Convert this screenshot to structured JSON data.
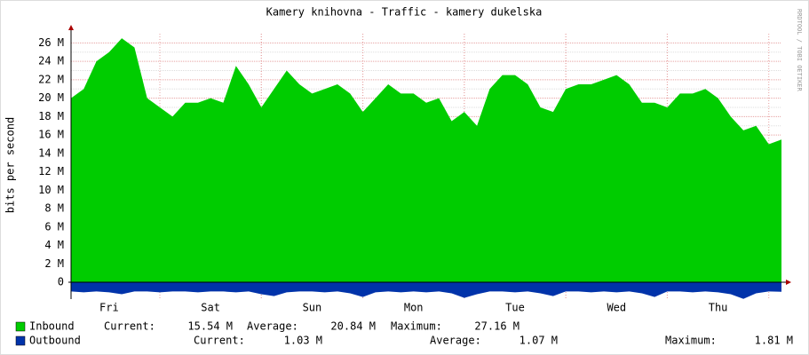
{
  "chart_data": {
    "type": "area",
    "title": "Kamery knihovna - Traffic - kamery dukelska",
    "y_label": "bits per second",
    "side_note": "RRDTOOL / TOBI OETIKER",
    "categories": [
      null,
      null,
      null,
      "Fri",
      null,
      null,
      null,
      null,
      null,
      null,
      null,
      "Sat",
      null,
      null,
      null,
      null,
      null,
      null,
      null,
      "Sun",
      null,
      null,
      null,
      null,
      null,
      null,
      null,
      "Mon",
      null,
      null,
      null,
      null,
      null,
      null,
      null,
      "Tue",
      null,
      null,
      null,
      null,
      null,
      null,
      null,
      "Wed",
      null,
      null,
      null,
      null,
      null,
      null,
      null,
      "Thu",
      null,
      null,
      null,
      null,
      null
    ],
    "series": [
      {
        "name": "Inbound",
        "color": "#00cc00",
        "direction": "up",
        "values": [
          20000000.0,
          21000000.0,
          24000000.0,
          25000000.0,
          26500000.0,
          25500000.0,
          20000000.0,
          19000000.0,
          18000000.0,
          19500000.0,
          19500000.0,
          20000000.0,
          19500000.0,
          23500000.0,
          21500000.0,
          19000000.0,
          21000000.0,
          23000000.0,
          21500000.0,
          20500000.0,
          21000000.0,
          21500000.0,
          20500000.0,
          18500000.0,
          20000000.0,
          21500000.0,
          20500000.0,
          20500000.0,
          19500000.0,
          20000000.0,
          17500000.0,
          18500000.0,
          17000000.0,
          21000000.0,
          22500000.0,
          22500000.0,
          21500000.0,
          19000000.0,
          18500000.0,
          21000000.0,
          21500000.0,
          21500000.0,
          22000000.0,
          22500000.0,
          21500000.0,
          19500000.0,
          19500000.0,
          19000000.0,
          20500000.0,
          20500000.0,
          21000000.0,
          20000000.0,
          18000000.0,
          16500000.0,
          17000000.0,
          15000000.0,
          15500000.0
        ],
        "stats": [
          {
            "label": "Current:",
            "value": "15.54 M"
          },
          {
            "label": "Average:",
            "value": "20.84 M"
          },
          {
            "label": "Maximum:",
            "value": "27.16 M"
          }
        ]
      },
      {
        "name": "Outbound",
        "color": "#0033aa",
        "direction": "down",
        "values": [
          1000000.0,
          1100000.0,
          1000000.0,
          1100000.0,
          1300000.0,
          1000000.0,
          1000000.0,
          1100000.0,
          1000000.0,
          1000000.0,
          1100000.0,
          1000000.0,
          1000000.0,
          1100000.0,
          1000000.0,
          1300000.0,
          1500000.0,
          1100000.0,
          1000000.0,
          1000000.0,
          1100000.0,
          1000000.0,
          1200000.0,
          1600000.0,
          1100000.0,
          1000000.0,
          1100000.0,
          1000000.0,
          1100000.0,
          1000000.0,
          1200000.0,
          1700000.0,
          1300000.0,
          1000000.0,
          1000000.0,
          1100000.0,
          1000000.0,
          1200000.0,
          1500000.0,
          1000000.0,
          1000000.0,
          1100000.0,
          1000000.0,
          1100000.0,
          1000000.0,
          1200000.0,
          1600000.0,
          1000000.0,
          1000000.0,
          1100000.0,
          1000000.0,
          1100000.0,
          1300000.0,
          1800000.0,
          1200000.0,
          1000000.0,
          1030000.0
        ],
        "stats": [
          {
            "label": "Current:",
            "value": "1.03 M"
          },
          {
            "label": "Average:",
            "value": "1.07 M"
          },
          {
            "label": "Maximum:",
            "value": "1.81 M"
          }
        ]
      }
    ],
    "ylim": [
      -1830000,
      27000000
    ],
    "yticks": [
      0,
      {
        "value": 2000000,
        "label": "2 M"
      },
      {
        "value": 4000000,
        "label": "4 M"
      },
      {
        "value": 6000000,
        "label": "6 M"
      },
      {
        "value": 8000000,
        "label": "8 M"
      },
      {
        "value": 10000000,
        "label": "10 M"
      },
      {
        "value": 12000000,
        "label": "12 M"
      },
      {
        "value": 14000000,
        "label": "14 M"
      },
      {
        "value": 16000000,
        "label": "16 M"
      },
      {
        "value": 18000000,
        "label": "18 M"
      },
      {
        "value": 20000000,
        "label": "20 M"
      },
      {
        "value": 22000000,
        "label": "22 M"
      },
      {
        "value": 24000000,
        "label": "24 M"
      },
      {
        "value": 26000000,
        "label": "26 M"
      }
    ],
    "grid": true
  }
}
